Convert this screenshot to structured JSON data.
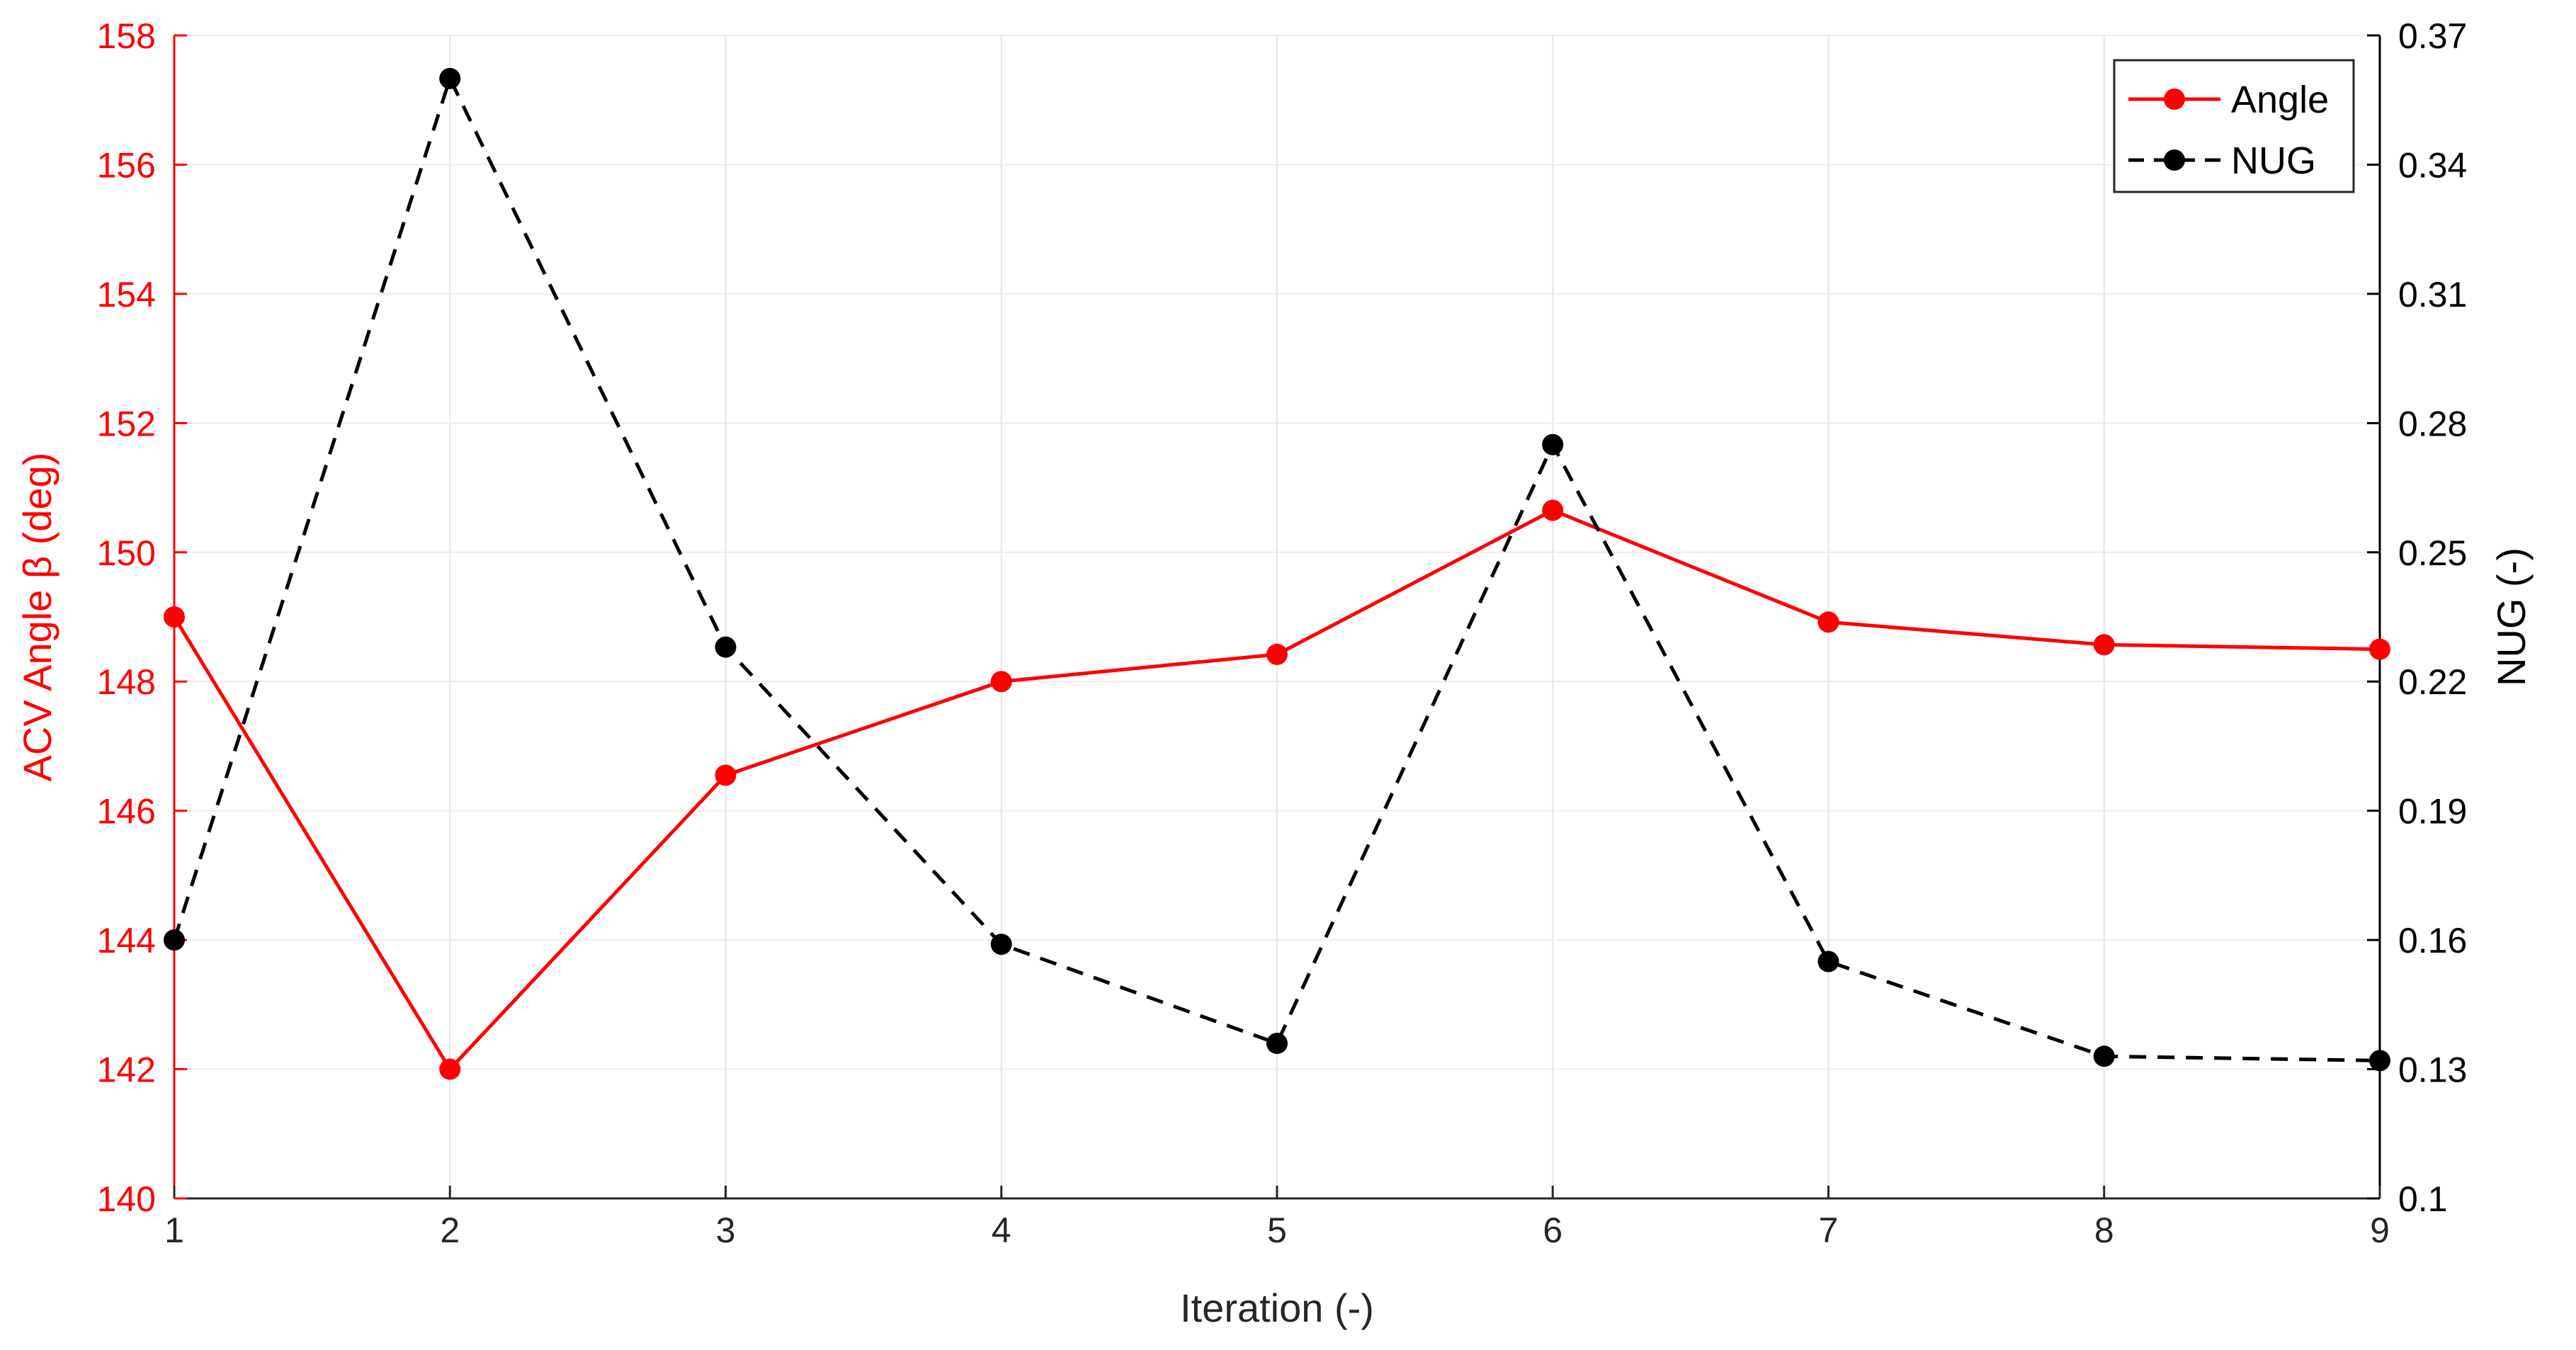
{
  "chart_data": {
    "type": "line",
    "title": "",
    "xlabel": "Iteration (-)",
    "ylabel_left": "ACV Angle β (deg)",
    "ylabel_right": "NUG (-)",
    "x": [
      1,
      2,
      3,
      4,
      5,
      6,
      7,
      8,
      9
    ],
    "xlim": [
      1,
      9
    ],
    "xticks": [
      "1",
      "2",
      "3",
      "4",
      "5",
      "6",
      "7",
      "8",
      "9"
    ],
    "ylim_left": [
      140,
      158
    ],
    "yticks_left": [
      "140",
      "142",
      "144",
      "146",
      "148",
      "150",
      "152",
      "154",
      "156",
      "158"
    ],
    "ylim_right": [
      0.1,
      0.37
    ],
    "yticks_right": [
      "0.1",
      "0.13",
      "0.16",
      "0.19",
      "0.22",
      "0.25",
      "0.28",
      "0.31",
      "0.34",
      "0.37"
    ],
    "grid": true,
    "legend_position": "top-right",
    "series": [
      {
        "name": "Angle",
        "axis": "left",
        "color": "#ff0000",
        "line_style": "solid",
        "marker": "circle",
        "values": [
          149.0,
          142.0,
          146.55,
          148.0,
          148.42,
          150.65,
          148.92,
          148.57,
          148.5
        ]
      },
      {
        "name": "NUG",
        "axis": "right",
        "color": "#000000",
        "line_style": "dashed",
        "marker": "circle",
        "values": [
          0.16,
          0.36,
          0.228,
          0.159,
          0.136,
          0.275,
          0.155,
          0.133,
          0.132
        ]
      }
    ]
  }
}
